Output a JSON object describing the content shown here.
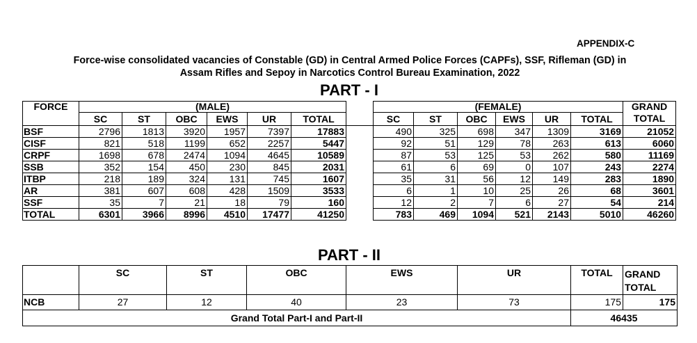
{
  "header": {
    "appendix": "APPENDIX-C",
    "title_line1": "Force-wise consolidated vacancies of Constable (GD) in Central Armed Police Forces (CAPFs), SSF, Rifleman (GD) in",
    "title_line2": "Assam Rifles and Sepoy in Narcotics Control Bureau Examination, 2022"
  },
  "part1": {
    "heading": "PART - I",
    "force_label": "FORCE",
    "male_label": "(MALE)",
    "female_label": "(FEMALE)",
    "grand_label_1": "GRAND",
    "grand_label_2": "TOTAL",
    "columns": [
      "SC",
      "ST",
      "OBC",
      "EWS",
      "UR",
      "TOTAL"
    ],
    "rows": [
      {
        "force": "BSF",
        "male": [
          "2796",
          "1813",
          "3920",
          "1957",
          "7397",
          "17883"
        ],
        "female": [
          "490",
          "325",
          "698",
          "347",
          "1309",
          "3169"
        ],
        "grand": "21052"
      },
      {
        "force": "CISF",
        "male": [
          "821",
          "518",
          "1199",
          "652",
          "2257",
          "5447"
        ],
        "female": [
          "92",
          "51",
          "129",
          "78",
          "263",
          "613"
        ],
        "grand": "6060"
      },
      {
        "force": "CRPF",
        "male": [
          "1698",
          "678",
          "2474",
          "1094",
          "4645",
          "10589"
        ],
        "female": [
          "87",
          "53",
          "125",
          "53",
          "262",
          "580"
        ],
        "grand": "11169"
      },
      {
        "force": "SSB",
        "male": [
          "352",
          "154",
          "450",
          "230",
          "845",
          "2031"
        ],
        "female": [
          "61",
          "6",
          "69",
          "0",
          "107",
          "243"
        ],
        "grand": "2274"
      },
      {
        "force": "ITBP",
        "male": [
          "218",
          "189",
          "324",
          "131",
          "745",
          "1607"
        ],
        "female": [
          "35",
          "31",
          "56",
          "12",
          "149",
          "283"
        ],
        "grand": "1890"
      },
      {
        "force": "AR",
        "male": [
          "381",
          "607",
          "608",
          "428",
          "1509",
          "3533"
        ],
        "female": [
          "6",
          "1",
          "10",
          "25",
          "26",
          "68"
        ],
        "grand": "3601"
      },
      {
        "force": "SSF",
        "male": [
          "35",
          "7",
          "21",
          "18",
          "79",
          "160"
        ],
        "female": [
          "12",
          "2",
          "7",
          "6",
          "27",
          "54"
        ],
        "grand": "214"
      },
      {
        "force": "TOTAL",
        "male": [
          "6301",
          "3966",
          "8996",
          "4510",
          "17477",
          "41250"
        ],
        "female": [
          "783",
          "469",
          "1094",
          "521",
          "2143",
          "5010"
        ],
        "grand": "46260"
      }
    ]
  },
  "part2": {
    "heading": "PART - II",
    "columns": [
      "SC",
      "ST",
      "OBC",
      "EWS",
      "UR",
      "TOTAL"
    ],
    "grand_label_1": "GRAND",
    "grand_label_2": "TOTAL",
    "row": {
      "force": "NCB",
      "values": [
        "27",
        "12",
        "40",
        "23",
        "73",
        "175"
      ],
      "grand": "175"
    },
    "grand_total_label": "Grand Total Part-I and Part-II",
    "grand_total_value": "46435"
  }
}
